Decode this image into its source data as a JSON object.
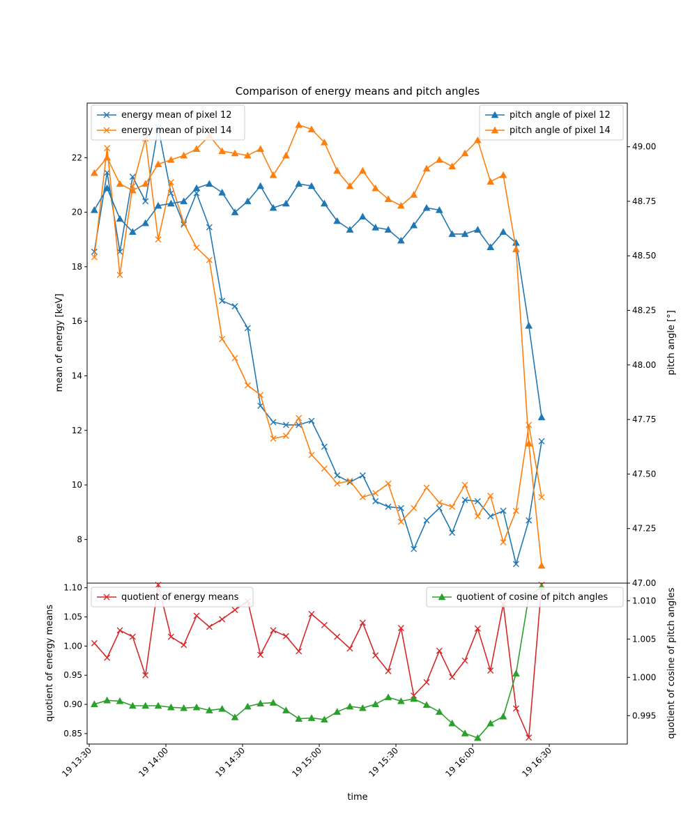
{
  "chart_data": [
    {
      "type": "line",
      "title": "Comparison of energy means and pitch angles",
      "ylabel_left": "mean of energy [keV]",
      "ylabel_right": "pitch angle [°]",
      "ylim_left": [
        6.4,
        24.0
      ],
      "ylim_right": [
        47.0,
        49.2
      ],
      "y_ticks_left": [
        "8",
        "10",
        "12",
        "14",
        "16",
        "18",
        "20",
        "22"
      ],
      "y_ticks_right": [
        "47.00",
        "47.25",
        "47.50",
        "47.75",
        "48.00",
        "48.25",
        "48.50",
        "48.75",
        "49.00"
      ],
      "x_times": [
        "13:32",
        "13:37",
        "13:42",
        "13:47",
        "13:52",
        "13:57",
        "14:02",
        "14:07",
        "14:12",
        "14:17",
        "14:22",
        "14:27",
        "14:32",
        "14:37",
        "14:42",
        "14:47",
        "14:52",
        "14:57",
        "15:02",
        "15:07",
        "15:12",
        "15:17",
        "15:22",
        "15:27",
        "15:32",
        "15:37",
        "15:42",
        "15:47",
        "15:52",
        "15:57",
        "16:02",
        "16:07",
        "16:12",
        "16:17",
        "16:22",
        "16:27"
      ],
      "series": [
        {
          "name": "energy mean of pixel 12",
          "axis": "left",
          "marker": "x",
          "color": "#1f77b4",
          "values": [
            18.55,
            21.45,
            18.55,
            21.3,
            20.4,
            23.1,
            20.7,
            19.55,
            20.7,
            19.45,
            16.75,
            16.55,
            15.75,
            12.9,
            12.3,
            12.2,
            12.2,
            12.35,
            11.4,
            10.35,
            10.1,
            10.35,
            9.4,
            9.2,
            9.15,
            7.65,
            8.7,
            9.15,
            8.25,
            9.45,
            9.4,
            8.85,
            9.05,
            7.1,
            8.7,
            11.6
          ]
        },
        {
          "name": "energy mean of pixel 14",
          "axis": "left",
          "marker": "x",
          "color": "#ff7f0e",
          "values": [
            18.35,
            22.35,
            17.7,
            20.95,
            22.7,
            19.0,
            21.1,
            19.6,
            18.7,
            18.25,
            15.35,
            14.65,
            13.65,
            13.3,
            11.7,
            11.8,
            12.45,
            11.1,
            10.6,
            10.05,
            10.15,
            9.55,
            9.7,
            10.05,
            8.65,
            9.15,
            9.9,
            9.35,
            9.2,
            10.0,
            8.85,
            9.6,
            7.9,
            9.05,
            12.2,
            9.55
          ]
        },
        {
          "name": "pitch angle of pixel 12",
          "axis": "right",
          "marker": "triangle",
          "color": "#1f77b4",
          "values": [
            48.71,
            48.81,
            48.67,
            48.61,
            48.65,
            48.73,
            48.74,
            48.75,
            48.81,
            48.83,
            48.79,
            48.7,
            48.75,
            48.82,
            48.72,
            48.74,
            48.83,
            48.82,
            48.74,
            48.66,
            48.62,
            48.68,
            48.63,
            48.62,
            48.57,
            48.64,
            48.72,
            48.71,
            48.6,
            48.6,
            48.62,
            48.54,
            48.61,
            48.56,
            48.18,
            47.76
          ]
        },
        {
          "name": "pitch angle of pixel 14",
          "axis": "right",
          "marker": "triangle",
          "color": "#ff7f0e",
          "values": [
            48.88,
            48.95,
            48.83,
            48.8,
            48.83,
            48.92,
            48.94,
            48.96,
            48.99,
            49.05,
            48.98,
            48.97,
            48.96,
            48.99,
            48.87,
            48.96,
            49.1,
            49.08,
            49.02,
            48.89,
            48.82,
            48.89,
            48.81,
            48.76,
            48.73,
            48.78,
            48.9,
            48.94,
            48.91,
            48.97,
            49.03,
            48.84,
            48.87,
            48.53,
            47.64,
            47.08
          ]
        }
      ],
      "legend_left_position": "top-left",
      "legend_right_position": "top-right"
    },
    {
      "type": "line",
      "xlabel": "time",
      "ylabel_left": "quotient of energy means",
      "ylabel_right": "quotient of cosine of pitch angles",
      "ylim_left": [
        0.832,
        1.108
      ],
      "ylim_right": [
        0.9913,
        1.0123
      ],
      "y_ticks_left": [
        "0.85",
        "0.90",
        "0.95",
        "1.00",
        "1.05",
        "1.10"
      ],
      "y_ticks_right": [
        "0.995",
        "1.000",
        "1.005",
        "1.010"
      ],
      "x_tick_labels": [
        "19 13:30",
        "19 14:00",
        "19 14:30",
        "19 15:00",
        "19 15:30",
        "19 16:00",
        "19 16:30"
      ],
      "series": [
        {
          "name": "quotient of energy means",
          "axis": "left",
          "marker": "x",
          "color": "#d62728",
          "values": [
            1.005,
            0.98,
            1.027,
            1.016,
            0.95,
            1.105,
            1.016,
            1.002,
            1.052,
            1.033,
            1.046,
            1.062,
            1.077,
            0.985,
            1.027,
            1.017,
            0.991,
            1.055,
            1.036,
            1.016,
            0.996,
            1.04,
            0.984,
            0.957,
            1.031,
            0.915,
            0.938,
            0.992,
            0.947,
            0.975,
            1.03,
            0.958,
            1.072,
            0.893,
            0.843,
            1.105
          ]
        },
        {
          "name": "quotient of cosine of pitch angles",
          "axis": "right",
          "marker": "triangle",
          "color": "#2ca02c",
          "values": [
            0.9965,
            0.997,
            0.9969,
            0.9963,
            0.9963,
            0.9963,
            0.9961,
            0.996,
            0.9961,
            0.9957,
            0.9959,
            0.9948,
            0.9962,
            0.9966,
            0.9967,
            0.9957,
            0.9946,
            0.9947,
            0.9945,
            0.9955,
            0.9962,
            0.996,
            0.9965,
            0.9974,
            0.9969,
            0.9972,
            0.9964,
            0.9955,
            0.994,
            0.9927,
            0.9921,
            0.994,
            0.9949,
            1.0005,
            1.0106,
            1.0118
          ]
        }
      ],
      "legend_left_position": "top-left",
      "legend_right_position": "top-right"
    }
  ]
}
